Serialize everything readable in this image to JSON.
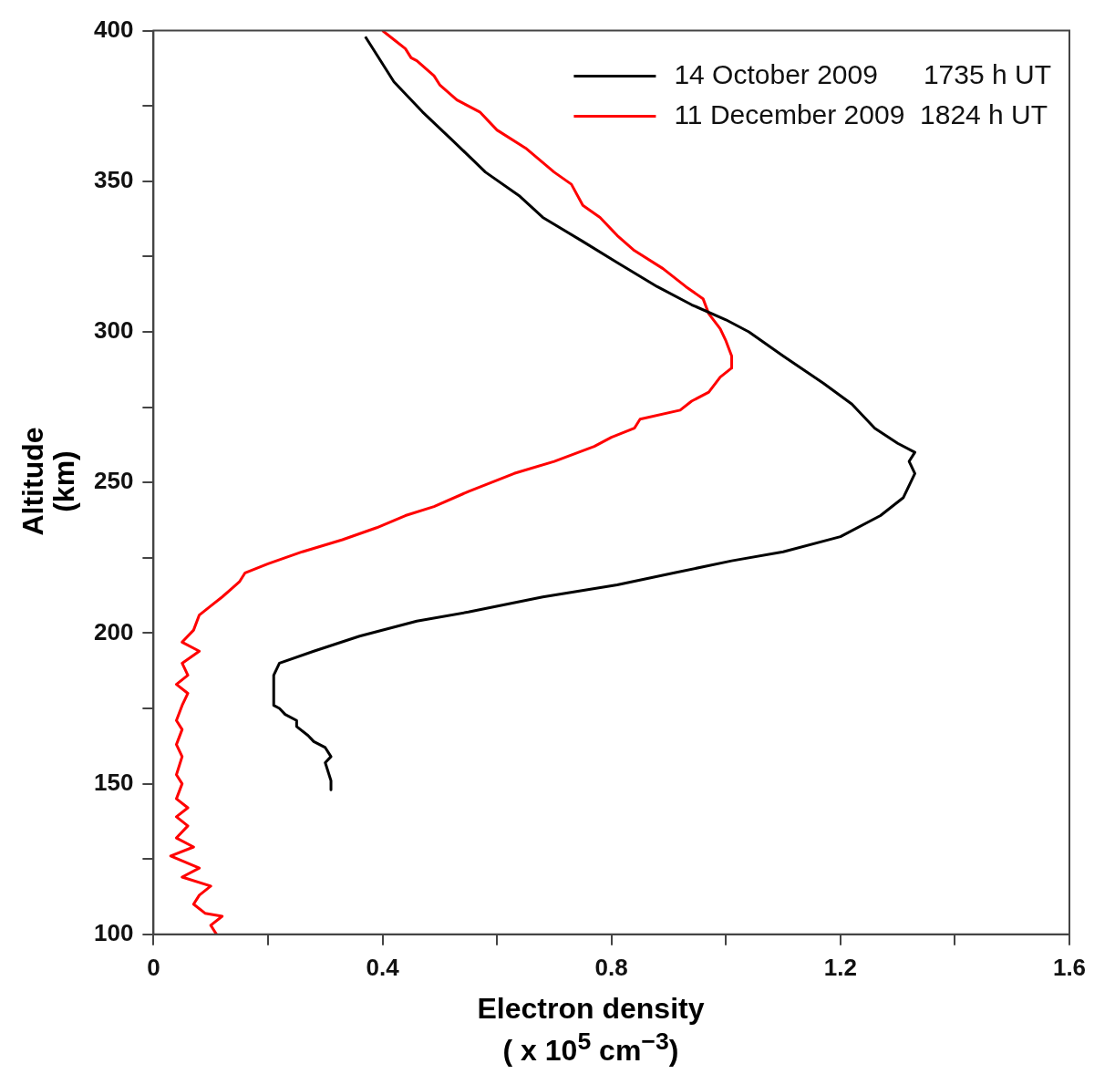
{
  "chart_data": {
    "type": "line",
    "xlabel": "Electron density\n( x 10$^{5}$ cm$^{−3}$)",
    "ylabel": "Altitude\n(km)",
    "xlim": [
      0,
      1.6
    ],
    "xticks": [
      0,
      {
        "value": 0.2,
        "label": null
      },
      0.4,
      {
        "value": 0.6,
        "label": null
      },
      0.8,
      {
        "value": 1.0,
        "label": null
      },
      1.2,
      {
        "value": 1.4,
        "label": null
      },
      1.6
    ],
    "ylim": [
      100,
      400
    ],
    "yticks": [
      100,
      {
        "value": 125,
        "label": null
      },
      150,
      {
        "value": 175,
        "label": null
      },
      200,
      {
        "value": 225,
        "label": null
      },
      250,
      {
        "value": 275,
        "label": null
      },
      300,
      {
        "value": 325,
        "label": null
      },
      350,
      {
        "value": 375,
        "label": null
      },
      400
    ],
    "grid": false,
    "legend": "top right",
    "marker": "none",
    "line_style": "solid",
    "series": [
      {
        "name": "14 October 2009      1735 h UT",
        "color": "#000000",
        "x": [
          0.37,
          0.39,
          0.42,
          0.47,
          0.52,
          0.58,
          0.64,
          0.68,
          0.75,
          0.81,
          0.88,
          0.94,
          1.0,
          1.04,
          1.1,
          1.17,
          1.22,
          1.26,
          1.3,
          1.33,
          1.32,
          1.33,
          1.31,
          1.27,
          1.2,
          1.1,
          1.01,
          0.91,
          0.81,
          0.68,
          0.55,
          0.46,
          0.36,
          0.28,
          0.22,
          0.21,
          0.21,
          0.22,
          0.23,
          0.25,
          0.25,
          0.27,
          0.28,
          0.3,
          0.31,
          0.3,
          0.31,
          0.31
        ],
        "values": [
          398,
          392,
          383,
          373,
          364,
          353,
          345,
          338,
          330,
          323,
          315,
          309,
          304,
          300,
          292,
          283,
          276,
          268,
          263,
          260,
          257,
          253,
          245,
          239,
          232,
          227,
          224,
          220,
          216,
          212,
          207,
          204,
          199,
          194,
          190,
          186,
          176,
          175,
          173,
          171,
          169,
          166,
          164,
          162,
          159,
          157,
          151,
          148
        ]
      },
      {
        "name": "11 December 2009  1824 h UT",
        "color": "#ff0000",
        "x": [
          0.4,
          0.42,
          0.44,
          0.45,
          0.46,
          0.49,
          0.5,
          0.53,
          0.57,
          0.6,
          0.65,
          0.7,
          0.73,
          0.75,
          0.78,
          0.81,
          0.84,
          0.89,
          0.93,
          0.96,
          0.97,
          0.99,
          1.0,
          1.01,
          1.01,
          0.99,
          0.97,
          0.94,
          0.92,
          0.85,
          0.84,
          0.8,
          0.77,
          0.7,
          0.63,
          0.55,
          0.49,
          0.44,
          0.39,
          0.33,
          0.26,
          0.2,
          0.16,
          0.15,
          0.12,
          0.1,
          0.08,
          0.07,
          0.05,
          0.08,
          0.05,
          0.06,
          0.04,
          0.06,
          0.05,
          0.04,
          0.05,
          0.04,
          0.05,
          0.04,
          0.05,
          0.04,
          0.06,
          0.04,
          0.06,
          0.04,
          0.07,
          0.03,
          0.08,
          0.05,
          0.1,
          0.08,
          0.07,
          0.09,
          0.12,
          0.1,
          0.11
        ],
        "values": [
          400,
          397,
          394,
          391,
          390,
          385,
          382,
          377,
          373,
          367,
          361,
          353,
          349,
          342,
          338,
          332,
          327,
          321,
          315,
          311,
          306,
          301,
          297,
          292,
          288,
          285,
          280,
          277,
          274,
          271,
          268,
          265,
          262,
          257,
          253,
          247,
          242,
          239,
          235,
          231,
          227,
          223,
          220,
          217,
          212,
          209,
          206,
          201,
          197,
          194,
          190,
          186,
          183,
          180,
          176,
          171,
          168,
          163,
          159,
          153,
          150,
          145,
          142,
          139,
          136,
          132,
          129,
          126,
          122,
          119,
          116,
          113,
          110,
          107,
          106,
          103,
          100
        ]
      }
    ]
  }
}
